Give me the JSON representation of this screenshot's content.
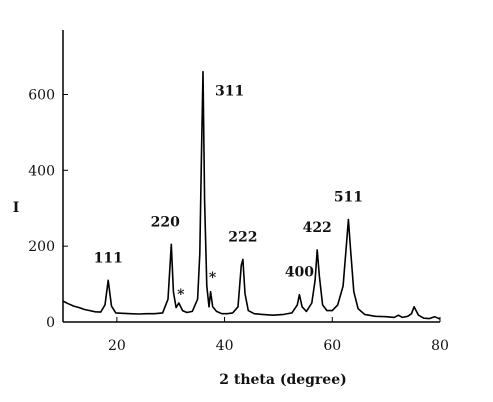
{
  "chart_data": {
    "type": "line",
    "title": "",
    "xlabel": "2 theta (degree)",
    "ylabel": "I",
    "xlim": [
      10,
      80
    ],
    "ylim": [
      0,
      770
    ],
    "x_ticks": [
      20,
      40,
      60,
      80
    ],
    "y_ticks": [
      0,
      200,
      400,
      600
    ],
    "grid": false,
    "legend": "none",
    "line_color": "#000000",
    "series": [
      {
        "x": [
          10,
          11,
          12,
          13,
          14,
          15,
          16,
          17,
          17.8,
          18.4,
          19,
          19.8,
          21,
          22.5,
          24,
          25.5,
          27,
          28.5,
          29.5,
          30.1,
          30.5,
          31,
          31.5,
          32.2,
          33,
          34,
          35,
          35.4,
          35.7,
          36,
          36.3,
          36.7,
          37.1,
          37.4,
          37.8,
          38.5,
          39.5,
          40.5,
          41.5,
          42.5,
          43.1,
          43.4,
          43.8,
          44.4,
          45.5,
          47,
          49,
          51,
          52.5,
          53.5,
          53.9,
          54.4,
          55.2,
          56.2,
          56.8,
          57.2,
          57.6,
          58.2,
          59,
          60,
          61,
          62,
          62.6,
          63,
          63.4,
          64,
          64.8,
          66,
          68,
          70,
          71.5,
          72.3,
          73,
          74,
          74.7,
          75.2,
          76,
          77,
          78,
          79,
          80
        ],
        "values": [
          55,
          48,
          42,
          38,
          33,
          30,
          27,
          26,
          45,
          110,
          42,
          24,
          23,
          22,
          21,
          22,
          22,
          24,
          60,
          205,
          80,
          38,
          50,
          30,
          25,
          28,
          60,
          180,
          430,
          660,
          320,
          95,
          40,
          80,
          40,
          28,
          22,
          22,
          24,
          40,
          150,
          165,
          75,
          30,
          22,
          20,
          18,
          20,
          24,
          45,
          72,
          40,
          28,
          50,
          110,
          190,
          120,
          45,
          30,
          30,
          45,
          95,
          200,
          270,
          190,
          80,
          35,
          20,
          15,
          14,
          12,
          18,
          12,
          15,
          22,
          40,
          18,
          10,
          9,
          14,
          8
        ]
      }
    ],
    "peak_labels": [
      {
        "text": "111",
        "x": 18.4
      },
      {
        "text": "220",
        "x": 30.1
      },
      {
        "text": "311",
        "x": 36
      },
      {
        "text": "222",
        "x": 43.4
      },
      {
        "text": "400",
        "x": 53.9
      },
      {
        "text": "422",
        "x": 57.2
      },
      {
        "text": "511",
        "x": 63
      }
    ],
    "markers": [
      {
        "text": "*",
        "x": 31.5
      },
      {
        "text": "*",
        "x": 37.4
      }
    ]
  }
}
